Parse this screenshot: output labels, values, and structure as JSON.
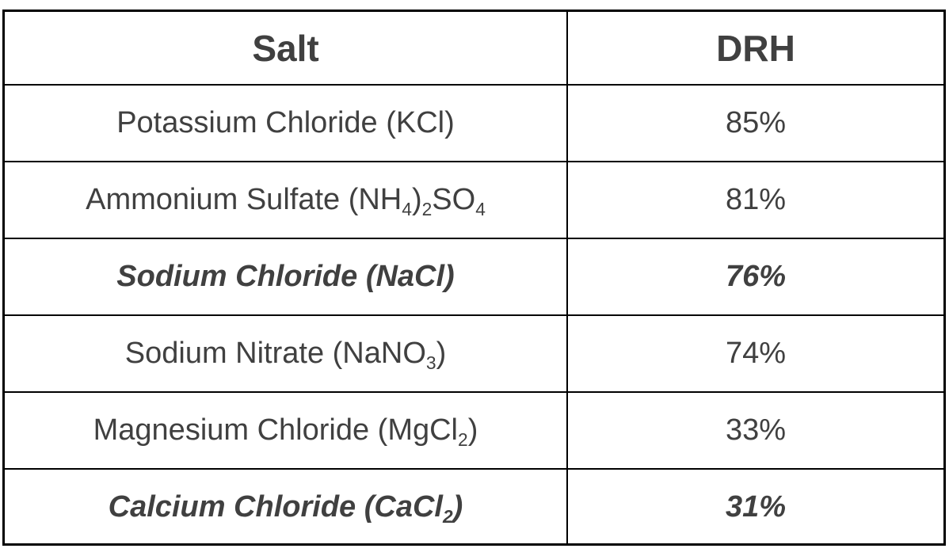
{
  "table": {
    "headers": [
      "Salt",
      "DRH"
    ],
    "rows": [
      {
        "name_parts": [
          {
            "text": "Potassium Chloride (KCl)"
          }
        ],
        "drh": "85%",
        "emphasized": false
      },
      {
        "name_parts": [
          {
            "text": "Ammonium Sulfate (NH"
          },
          {
            "text": "4",
            "sub": true
          },
          {
            "text": ")"
          },
          {
            "text": "2",
            "sub": true
          },
          {
            "text": "SO"
          },
          {
            "text": "4",
            "sub": true
          }
        ],
        "drh": "81%",
        "emphasized": false
      },
      {
        "name_parts": [
          {
            "text": "Sodium Chloride (NaCl)"
          }
        ],
        "drh": "76%",
        "emphasized": true
      },
      {
        "name_parts": [
          {
            "text": "Sodium Nitrate (NaNO"
          },
          {
            "text": "3",
            "sub": true
          },
          {
            "text": ")"
          }
        ],
        "drh": "74%",
        "emphasized": false
      },
      {
        "name_parts": [
          {
            "text": "Magnesium Chloride (MgCl"
          },
          {
            "text": "2",
            "sub": true
          },
          {
            "text": ")"
          }
        ],
        "drh": "33%",
        "emphasized": false
      },
      {
        "name_parts": [
          {
            "text": "Calcium Chloride (CaCl"
          },
          {
            "text": "2",
            "sub": true
          },
          {
            "text": ")"
          }
        ],
        "drh": "31%",
        "emphasized": true
      }
    ]
  },
  "colors": {
    "text": "#404040",
    "border": "#000000"
  }
}
